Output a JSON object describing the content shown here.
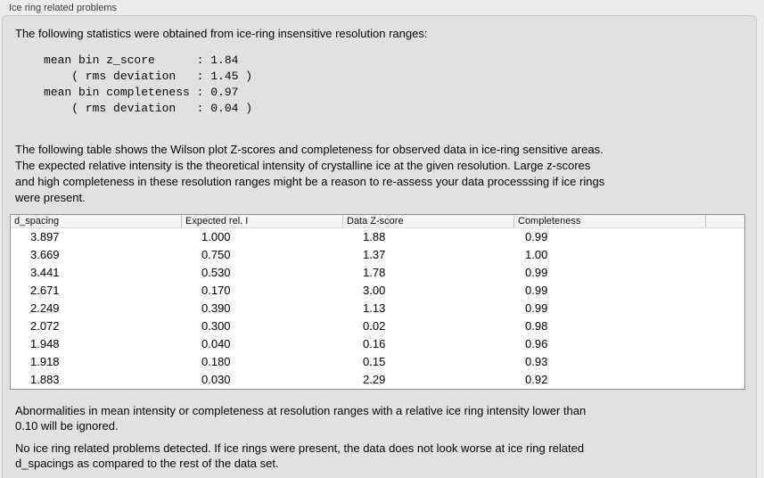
{
  "panel": {
    "title": "Ice ring related problems"
  },
  "intro": "The following statistics were obtained from ice-ring insensitive resolution ranges:",
  "stats_block": "mean bin z_score      : 1.84\n    ( rms deviation   : 1.45 )\nmean bin completeness : 0.97\n    ( rms deviation   : 0.04 )",
  "table_intro": "The following table shows the Wilson plot Z-scores and completeness for observed data in ice-ring sensitive areas.\nThe expected relative intensity is the theoretical intensity of crystalline ice at the given resolution. Large z-scores\nand high completeness in these resolution ranges might be a reason to re-assess your data processsing if ice rings\nwere present.",
  "table": {
    "columns": [
      "d_spacing",
      "Expected rel. I",
      "Data Z-score",
      "Completeness",
      ""
    ],
    "rows": [
      [
        "3.897",
        "1.000",
        "1.88",
        "0.99"
      ],
      [
        "3.669",
        "0.750",
        "1.37",
        "1.00"
      ],
      [
        "3.441",
        "0.530",
        "1.78",
        "0.99"
      ],
      [
        "2.671",
        "0.170",
        "3.00",
        "0.99"
      ],
      [
        "2.249",
        "0.390",
        "1.13",
        "0.99"
      ],
      [
        "2.072",
        "0.300",
        "0.02",
        "0.98"
      ],
      [
        "1.948",
        "0.040",
        "0.16",
        "0.96"
      ],
      [
        "1.918",
        "0.180",
        "0.15",
        "0.93"
      ],
      [
        "1.883",
        "0.030",
        "2.29",
        "0.92"
      ]
    ]
  },
  "note_ignore": "Abnormalities in mean intensity or completeness at resolution ranges with a relative ice ring intensity lower than\n0.10 will be ignored.",
  "conclusion": "No ice ring related problems detected. If ice rings were present, the data does not look worse at ice ring related\nd_spacings as compared to the rest of the data set.",
  "colors": {
    "page_background": "#ececec",
    "group_box_background": "#e1e1e1",
    "group_box_border": "#c9c9c9",
    "table_border": "#8f8f8f",
    "table_header_background": "#f4f4f4",
    "table_header_separator": "#c6c6c6",
    "table_body_background": "#ffffff",
    "text": "#060606"
  }
}
